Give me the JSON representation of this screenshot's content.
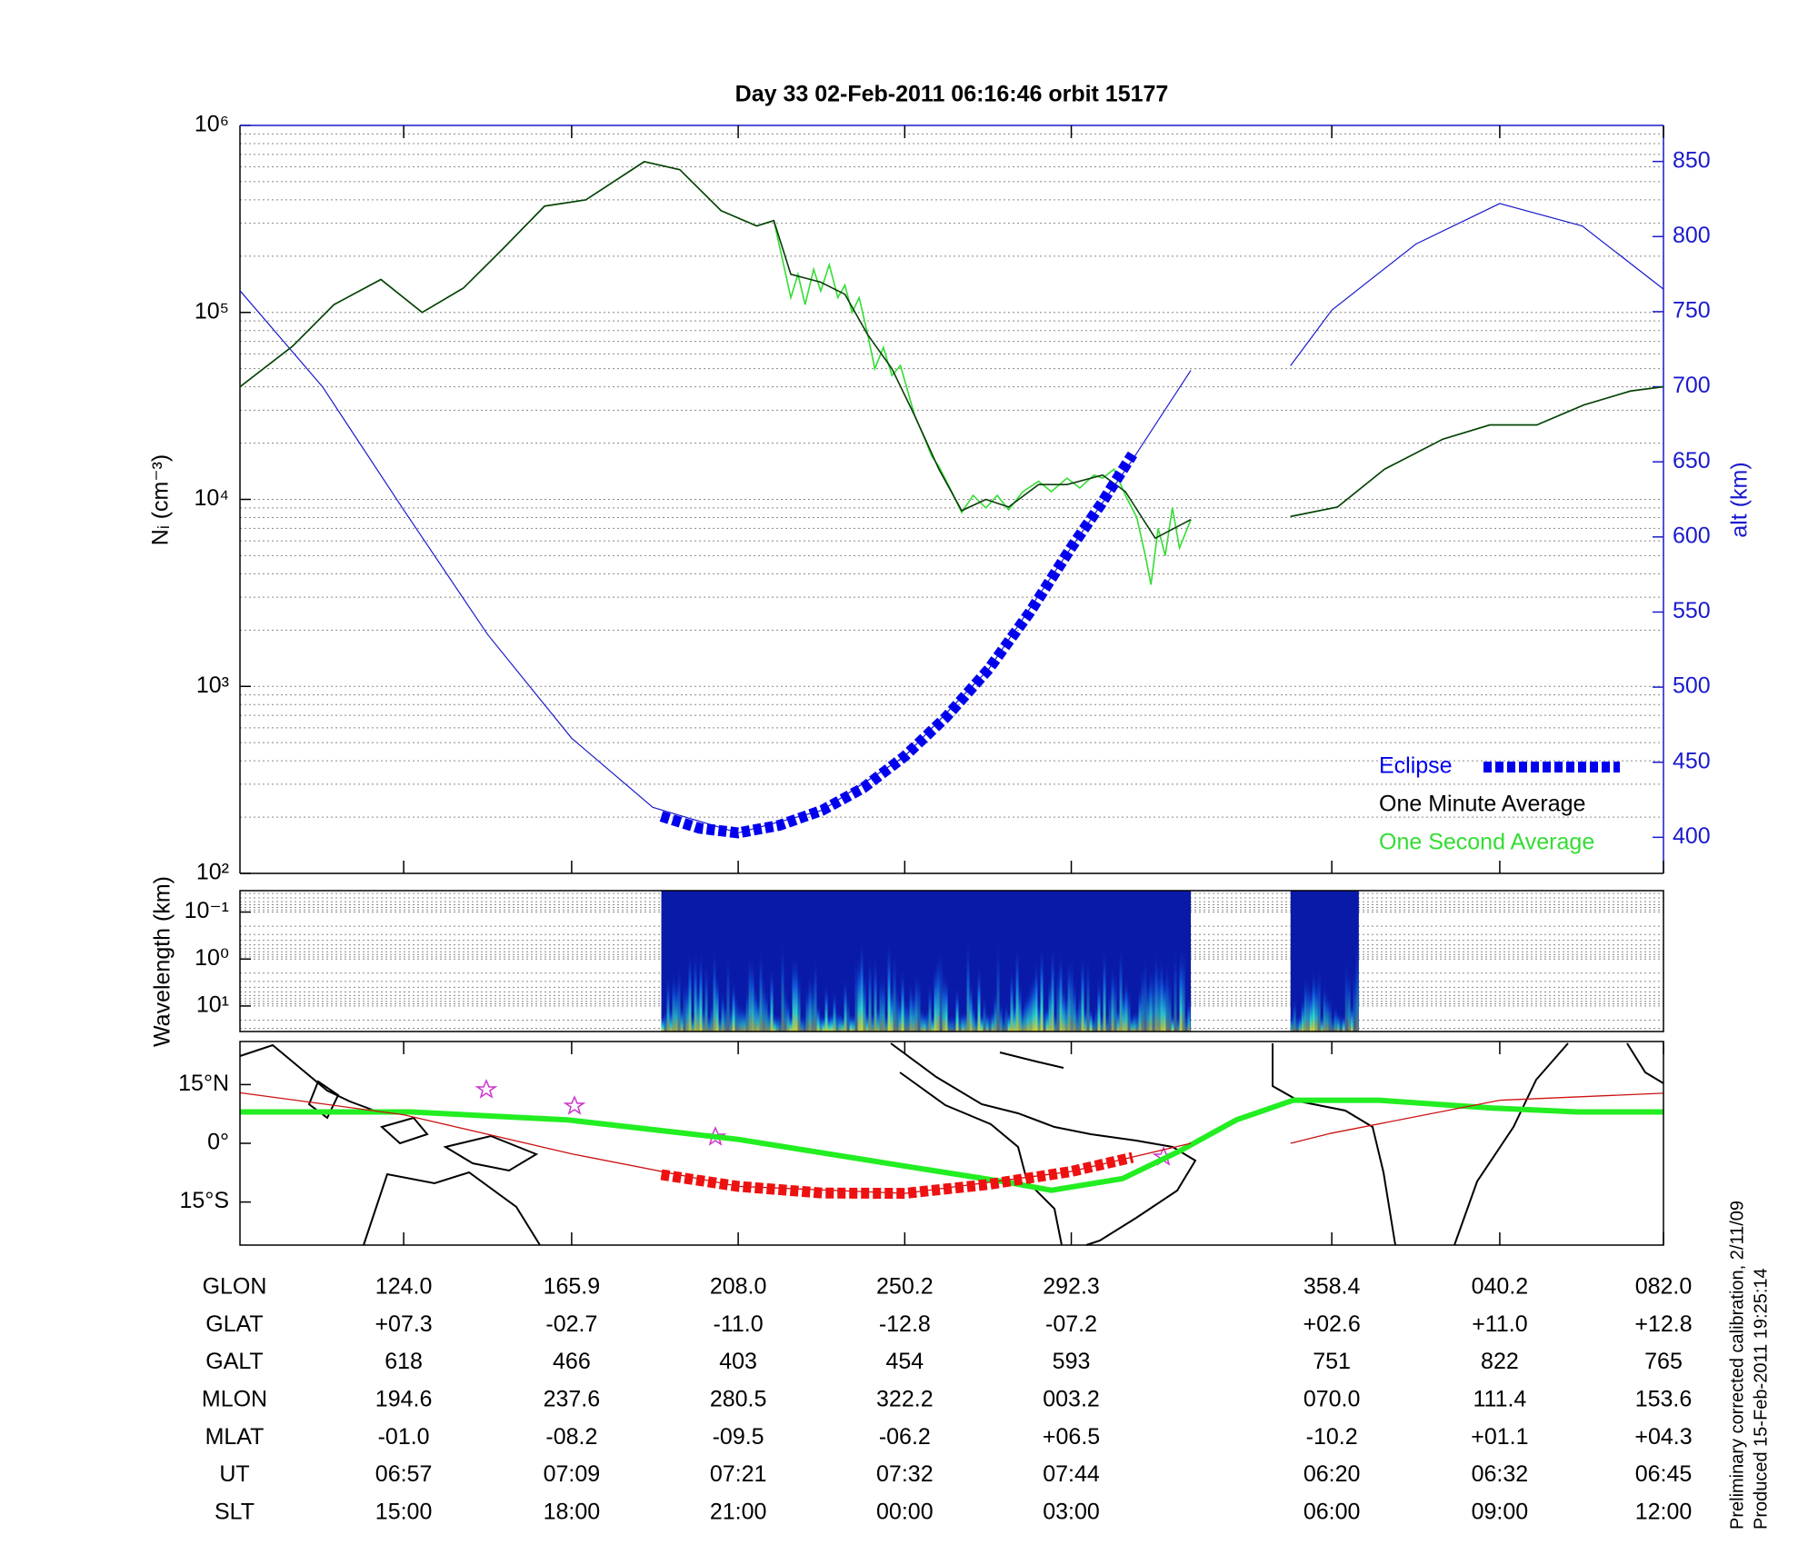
{
  "chart_data": {
    "type": "line",
    "title": "Day 33  02-Feb-2011 06:16:46   orbit 15177",
    "y_label": "Nᵢ (cm⁻³)",
    "y2_label": "alt (km)",
    "log_y": true,
    "grid": true,
    "legend_position": "lower right",
    "xlim": [
      0,
      100
    ],
    "xticks": [
      11.5,
      23.3,
      35,
      46.7,
      58.4,
      76.7,
      88.5,
      100
    ],
    "ylim": [
      100,
      1000000
    ],
    "yticks": [
      {
        "value": 100,
        "label": "10²"
      },
      {
        "value": 1000,
        "label": "10³"
      },
      {
        "value": 10000,
        "label": "10⁴"
      },
      {
        "value": 100000,
        "label": "10⁵"
      },
      {
        "value": 1000000,
        "label": "10⁶"
      }
    ],
    "y2lim": [
      376,
      874
    ],
    "y2ticks": [
      400,
      450,
      500,
      550,
      600,
      650,
      700,
      750,
      800,
      850
    ],
    "series": [
      {
        "name": "One Second Average",
        "color": "#33dd33",
        "x": [
          0,
          3.7,
          6.6,
          9.9,
          12.8,
          15.7,
          18.5,
          21.4,
          24.3,
          28.4,
          30.9,
          33.8,
          36.3,
          37.5,
          38.7,
          39.2,
          39.7,
          40.3,
          40.8,
          41.4,
          42,
          42.5,
          43,
          43.5,
          44.1,
          44.6,
          45.2,
          45.8,
          46.4,
          47.4,
          48,
          48.6,
          49.1,
          50,
          50.7,
          51.5,
          52.4,
          53.2,
          54,
          55,
          56.1,
          57,
          58.1,
          59,
          60,
          60.6,
          61.4,
          62.2,
          63,
          63.6,
          64,
          64.5,
          65,
          65.5,
          66,
          66.8,
          70,
          73.8,
          77.1,
          80.4,
          84.5,
          87.8,
          91.1,
          94.4,
          97.7,
          100
        ],
        "values": [
          40000,
          66000,
          110000,
          150000,
          100000,
          135000,
          220000,
          370000,
          400000,
          640000,
          580000,
          350000,
          290000,
          310000,
          120000,
          160000,
          110000,
          170000,
          130000,
          180000,
          120000,
          140000,
          100000,
          120000,
          76000,
          50000,
          65000,
          46000,
          52000,
          28000,
          22000,
          17000,
          15000,
          11000,
          8500,
          10500,
          9000,
          10500,
          8800,
          11000,
          12500,
          11000,
          13000,
          11500,
          13500,
          13000,
          14500,
          10500,
          8000,
          5000,
          3500,
          7000,
          5000,
          9000,
          5500,
          7800,
          null,
          8100,
          9100,
          14500,
          21000,
          25000,
          25000,
          32000,
          38000,
          40000
        ]
      },
      {
        "name": "One Minute Average",
        "color": "#0b3d0b",
        "x": [
          0,
          3.7,
          6.6,
          9.9,
          12.8,
          15.7,
          18.5,
          21.4,
          24.3,
          28.4,
          30.9,
          33.8,
          36.3,
          37.5,
          38.7,
          40.8,
          42.5,
          44.1,
          45.8,
          47.4,
          49.1,
          50.7,
          52.4,
          54,
          56.1,
          58.1,
          60.6,
          62.2,
          64.3,
          66.8,
          70,
          73.8,
          77.1,
          80.4,
          84.5,
          87.8,
          91.1,
          94.4,
          97.7,
          100
        ],
        "values": [
          40000,
          66000,
          110000,
          150000,
          100000,
          135000,
          220000,
          370000,
          400000,
          640000,
          580000,
          350000,
          290000,
          310000,
          160000,
          145000,
          125000,
          76000,
          50000,
          28000,
          14500,
          8700,
          10000,
          9100,
          12000,
          12000,
          13500,
          11000,
          6200,
          7800,
          null,
          8100,
          9100,
          14500,
          21000,
          25000,
          25000,
          32000,
          38000,
          40000
        ]
      },
      {
        "name": "Eclipse",
        "color": "#0000ee",
        "axis": "y2",
        "dashed": true,
        "x": [
          29.6,
          32.3,
          35,
          37.9,
          40.9,
          43.8,
          46.7,
          49.6,
          52.6,
          55.5,
          58.4,
          60.5,
          62.7
        ],
        "values": [
          414,
          406,
          403,
          408,
          418,
          433,
          454,
          480,
          512,
          550,
          593,
          622,
          655
        ]
      }
    ],
    "altitude": {
      "color": "#1a1acc",
      "axis": "y2",
      "x": [
        0,
        5.8,
        11.5,
        17.4,
        23.3,
        29,
        35,
        40.9,
        46.7,
        52.6,
        58.4,
        62.6,
        66.8,
        70,
        73.8,
        76.7,
        82.6,
        88.5,
        94.3,
        100
      ],
      "values": [
        764,
        700,
        618,
        535,
        466,
        420,
        403,
        418,
        454,
        512,
        593,
        650,
        711,
        null,
        714,
        751,
        795,
        822,
        807,
        765
      ]
    },
    "spectrogram": {
      "y_label": "Wavelength (km)",
      "log_y": true,
      "ylim": [
        0.035,
        35
      ],
      "yticks": [
        {
          "value": 0.1,
          "label": "10⁻¹"
        },
        {
          "value": 1,
          "label": "10⁰"
        },
        {
          "value": 10,
          "label": "10¹"
        }
      ],
      "segments": [
        [
          29.6,
          66.8
        ],
        [
          73.8,
          78.6
        ]
      ]
    },
    "map": {
      "ylim": [
        -26,
        26
      ],
      "yticks": [
        {
          "value": 15,
          "label": "15°N"
        },
        {
          "value": 0,
          "label": "0°"
        },
        {
          "value": -15,
          "label": "15°S"
        }
      ],
      "track": {
        "color": "#cc1111",
        "x": [
          0,
          11.5,
          23.3,
          35,
          46.7,
          58.4,
          66.8,
          70,
          73.8,
          76.7,
          88.5,
          100
        ],
        "values": [
          12.9,
          7.3,
          -2.7,
          -11,
          -12.8,
          -7.2,
          0,
          null,
          0,
          2.6,
          11,
          12.8
        ]
      },
      "eclipse_track": {
        "color": "#ee1111",
        "x": [
          29.6,
          35,
          40.9,
          46.7,
          52.6,
          58.4,
          62.7
        ],
        "values": [
          -8,
          -11,
          -12.7,
          -12.8,
          -10.5,
          -7.2,
          -3.6
        ]
      },
      "dip_equator": {
        "color": "#22ee22",
        "x": [
          0,
          12,
          23,
          35,
          47,
          54,
          57,
          62,
          66,
          70,
          74,
          80,
          88,
          94,
          100
        ],
        "values": [
          8,
          8,
          6,
          1,
          -6,
          -10,
          -12,
          -9,
          -2,
          6,
          11,
          11,
          9,
          8,
          8
        ]
      }
    },
    "table": {
      "rows": [
        {
          "label": "GLON",
          "values": [
            "124.0",
            "165.9",
            "208.0",
            "250.2",
            "292.3",
            "358.4",
            "040.2",
            "082.0"
          ]
        },
        {
          "label": "GLAT",
          "values": [
            "+07.3",
            "-02.7",
            "-11.0",
            "-12.8",
            "-07.2",
            "+02.6",
            "+11.0",
            "+12.8"
          ]
        },
        {
          "label": "GALT",
          "values": [
            "618",
            "466",
            "403",
            "454",
            "593",
            "751",
            "822",
            "765"
          ]
        },
        {
          "label": "MLON",
          "values": [
            "194.6",
            "237.6",
            "280.5",
            "322.2",
            "003.2",
            "070.0",
            "111.4",
            "153.6"
          ]
        },
        {
          "label": "MLAT",
          "values": [
            "-01.0",
            "-08.2",
            "-09.5",
            "-06.2",
            "+06.5",
            "-10.2",
            "+01.1",
            "+04.3"
          ]
        },
        {
          "label": "UT",
          "values": [
            "06:57",
            "07:09",
            "07:21",
            "07:32",
            "07:44",
            "06:20",
            "06:32",
            "06:45"
          ]
        },
        {
          "label": "SLT",
          "values": [
            "15:00",
            "18:00",
            "21:00",
            "00:00",
            "03:00",
            "06:00",
            "09:00",
            "12:00"
          ]
        }
      ]
    },
    "notes": [
      "Preliminary corrected calibration, 2/11/09",
      "Produced 15-Feb-2011 19:25:14"
    ]
  }
}
